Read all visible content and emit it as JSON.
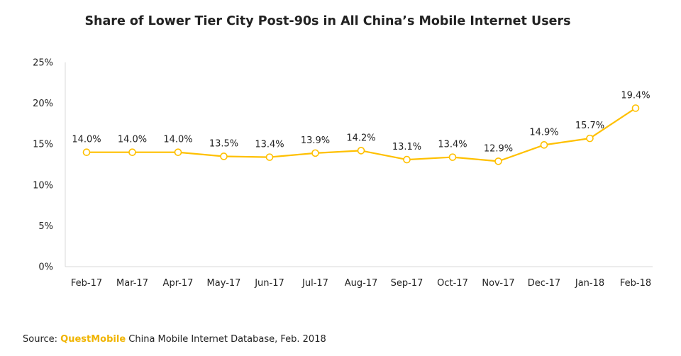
{
  "chart_data": {
    "type": "line",
    "title": "Share of Lower Tier City Post-90s in All China’s Mobile Internet Users",
    "xlabel": "",
    "ylabel": "",
    "categories": [
      "Feb-17",
      "Mar-17",
      "Apr-17",
      "May-17",
      "Jun-17",
      "Jul-17",
      "Aug-17",
      "Sep-17",
      "Oct-17",
      "Nov-17",
      "Dec-17",
      "Jan-18",
      "Feb-18"
    ],
    "series": [
      {
        "values": [
          14.0,
          14.0,
          14.0,
          13.5,
          13.4,
          13.9,
          14.2,
          13.1,
          13.4,
          12.9,
          14.9,
          15.7,
          19.4
        ],
        "labels": [
          "14.0%",
          "14.0%",
          "14.0%",
          "13.5%",
          "13.4%",
          "13.9%",
          "14.2%",
          "13.1%",
          "13.4%",
          "12.9%",
          "14.9%",
          "15.7%",
          "19.4%"
        ]
      }
    ],
    "ylim": [
      0,
      25
    ],
    "yticks": [
      0,
      5,
      10,
      15,
      20,
      25
    ],
    "ytick_labels": [
      "0%",
      "5%",
      "10%",
      "15%",
      "20%",
      "25%"
    ],
    "grid": false,
    "legend": "none",
    "line_color": "#FFC000"
  },
  "source": {
    "prefix": "Source: ",
    "brand": "QuestMobile",
    "suffix": " China Mobile Internet Database, Feb. 2018"
  }
}
